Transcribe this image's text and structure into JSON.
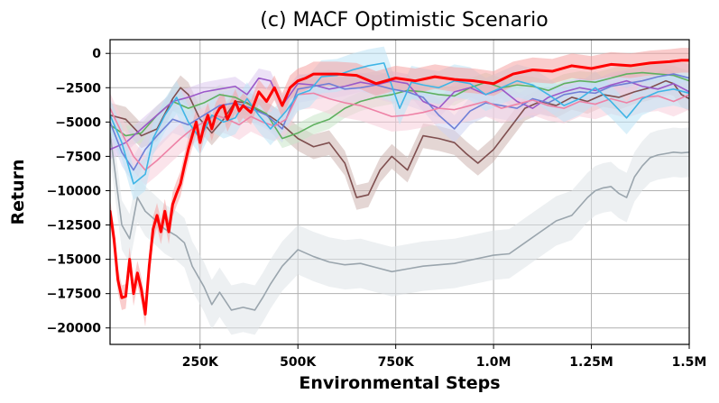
{
  "chart_data": {
    "type": "line",
    "title": "(c) MACF Optimistic Scenario",
    "xlabel": "Environmental Steps",
    "ylabel": "Return",
    "xlim": [
      20000,
      1500000
    ],
    "ylim": [
      -21200,
      1000
    ],
    "grid": true,
    "x_ticks": [
      250000,
      500000,
      750000,
      1000000,
      1250000,
      1500000
    ],
    "x_tick_labels": [
      "250K",
      "500K",
      "750K",
      "1.0M",
      "1.25M",
      "1.5M"
    ],
    "y_ticks": [
      0,
      -2500,
      -5000,
      -7500,
      -10000,
      -12500,
      -15000,
      -17500,
      -20000
    ],
    "y_tick_labels": [
      "0",
      "−2500",
      "−5000",
      "−7500",
      "−10000",
      "−12500",
      "−15000",
      "−17500",
      "−20000"
    ],
    "series": [
      {
        "name": "gray",
        "color": "#9aa5ad",
        "band_color": "#dfe4e8",
        "band_width": 1800,
        "width": 1.6,
        "x": [
          20000,
          50000,
          70000,
          90000,
          110000,
          130000,
          160000,
          190000,
          210000,
          230000,
          260000,
          280000,
          300000,
          330000,
          360000,
          390000,
          410000,
          430000,
          460000,
          500000,
          540000,
          580000,
          620000,
          660000,
          700000,
          740000,
          780000,
          820000,
          860000,
          900000,
          950000,
          1000000,
          1040000,
          1080000,
          1120000,
          1160000,
          1200000,
          1240000,
          1260000,
          1280000,
          1300000,
          1320000,
          1340000,
          1360000,
          1380000,
          1400000,
          1420000,
          1440000,
          1460000,
          1480000,
          1500000
        ],
        "y": [
          -5800,
          -12500,
          -13500,
          -10500,
          -11500,
          -12000,
          -12800,
          -13300,
          -13800,
          -15500,
          -17000,
          -18300,
          -17400,
          -18700,
          -18500,
          -18700,
          -17800,
          -16800,
          -15500,
          -14300,
          -14800,
          -15200,
          -15400,
          -15300,
          -15600,
          -15900,
          -15700,
          -15500,
          -15400,
          -15300,
          -15000,
          -14700,
          -14600,
          -13800,
          -13000,
          -12200,
          -11800,
          -10500,
          -10000,
          -9800,
          -9700,
          -10200,
          -10500,
          -9000,
          -8200,
          -7600,
          -7400,
          -7300,
          -7200,
          -7250,
          -7200
        ]
      },
      {
        "name": "brown",
        "color": "#7f4f4f",
        "band_color": "#cdb5b0",
        "band_width": 900,
        "width": 1.6,
        "x": [
          20000,
          60000,
          100000,
          140000,
          180000,
          200000,
          220000,
          250000,
          280000,
          310000,
          340000,
          370000,
          400000,
          430000,
          460000,
          500000,
          540000,
          580000,
          620000,
          650000,
          680000,
          710000,
          740000,
          780000,
          820000,
          860000,
          900000,
          930000,
          960000,
          1000000,
          1040000,
          1080000,
          1120000,
          1160000,
          1200000,
          1240000,
          1280000,
          1320000,
          1360000,
          1400000,
          1440000,
          1460000,
          1480000,
          1500000
        ],
        "y": [
          -4500,
          -4800,
          -6000,
          -5500,
          -3300,
          -2500,
          -3000,
          -4800,
          -5800,
          -4800,
          -3500,
          -3600,
          -4200,
          -4600,
          -5200,
          -6200,
          -6800,
          -6500,
          -8000,
          -10500,
          -10300,
          -8500,
          -7500,
          -8500,
          -6000,
          -6200,
          -6500,
          -7300,
          -8000,
          -7000,
          -5500,
          -4000,
          -3500,
          -3800,
          -3200,
          -3500,
          -3000,
          -3200,
          -2800,
          -2500,
          -2000,
          -2200,
          -3000,
          -3300
        ]
      },
      {
        "name": "green",
        "color": "#5fb05f",
        "band_color": "#c8e6c8",
        "band_width": 700,
        "width": 1.6,
        "x": [
          20000,
          60000,
          100000,
          140000,
          180000,
          220000,
          260000,
          300000,
          340000,
          380000,
          420000,
          460000,
          500000,
          540000,
          580000,
          620000,
          660000,
          700000,
          740000,
          780000,
          820000,
          860000,
          900000,
          940000,
          980000,
          1020000,
          1060000,
          1100000,
          1140000,
          1180000,
          1220000,
          1260000,
          1300000,
          1340000,
          1380000,
          1420000,
          1460000,
          1500000
        ],
        "y": [
          -5200,
          -6000,
          -5800,
          -4500,
          -3500,
          -4000,
          -3600,
          -3000,
          -3200,
          -3800,
          -4400,
          -6200,
          -5800,
          -5200,
          -4800,
          -4000,
          -3500,
          -3200,
          -3000,
          -2700,
          -2800,
          -3000,
          -3100,
          -2500,
          -2100,
          -2500,
          -2300,
          -2400,
          -2700,
          -2200,
          -2000,
          -2100,
          -1800,
          -1500,
          -1400,
          -1500,
          -1600,
          -2000
        ]
      },
      {
        "name": "purple",
        "color": "#9b59c9",
        "band_color": "#dcc8ee",
        "band_width": 700,
        "width": 1.6,
        "x": [
          20000,
          60000,
          100000,
          140000,
          180000,
          220000,
          260000,
          300000,
          340000,
          370000,
          400000,
          430000,
          460000,
          500000,
          540000,
          580000,
          620000,
          660000,
          700000,
          740000,
          780000,
          820000,
          860000,
          900000,
          940000,
          980000,
          1020000,
          1060000,
          1100000,
          1140000,
          1180000,
          1220000,
          1260000,
          1300000,
          1340000,
          1380000,
          1420000,
          1460000,
          1500000
        ],
        "y": [
          -7000,
          -6500,
          -5500,
          -4500,
          -3500,
          -3200,
          -2800,
          -2600,
          -2400,
          -3000,
          -1800,
          -2000,
          -3800,
          -2200,
          -2300,
          -2600,
          -2400,
          -2100,
          -2300,
          -2000,
          -2200,
          -3500,
          -4000,
          -2800,
          -2500,
          -3000,
          -2600,
          -3500,
          -4000,
          -3200,
          -2800,
          -2500,
          -2700,
          -2300,
          -2000,
          -2400,
          -2600,
          -2200,
          -2800
        ]
      },
      {
        "name": "blue",
        "color": "#6f7fd6",
        "band_color": "#cfd5f2",
        "band_width": 1000,
        "width": 1.6,
        "x": [
          20000,
          50000,
          80000,
          110000,
          140000,
          180000,
          220000,
          260000,
          300000,
          340000,
          380000,
          420000,
          460000,
          500000,
          540000,
          580000,
          620000,
          660000,
          700000,
          740000,
          780000,
          820000,
          860000,
          900000,
          940000,
          980000,
          1020000,
          1060000,
          1100000,
          1140000,
          1180000,
          1220000,
          1260000,
          1300000,
          1340000,
          1380000,
          1420000,
          1460000,
          1500000
        ],
        "y": [
          -5000,
          -7200,
          -8500,
          -7000,
          -6000,
          -4800,
          -5200,
          -4500,
          -3800,
          -3600,
          -4000,
          -4500,
          -5500,
          -2600,
          -2400,
          -2200,
          -2600,
          -2500,
          -2300,
          -2600,
          -2800,
          -3200,
          -4500,
          -5500,
          -4200,
          -3600,
          -3800,
          -4000,
          -3300,
          -3600,
          -3000,
          -2800,
          -2900,
          -2400,
          -2200,
          -2000,
          -1700,
          -1500,
          -1800
        ]
      },
      {
        "name": "pink",
        "color": "#ee82a6",
        "band_color": "#f7cedb",
        "band_width": 1100,
        "width": 1.6,
        "x": [
          20000,
          50000,
          80000,
          110000,
          140000,
          170000,
          200000,
          230000,
          260000,
          290000,
          320000,
          350000,
          380000,
          410000,
          440000,
          470000,
          500000,
          540000,
          580000,
          620000,
          660000,
          700000,
          740000,
          780000,
          820000,
          860000,
          900000,
          940000,
          980000,
          1020000,
          1060000,
          1100000,
          1140000,
          1180000,
          1220000,
          1260000,
          1300000,
          1340000,
          1380000,
          1420000,
          1460000,
          1500000
        ],
        "y": [
          -4000,
          -5800,
          -7500,
          -8500,
          -7800,
          -7000,
          -6200,
          -5500,
          -5000,
          -4500,
          -4800,
          -5200,
          -4600,
          -5000,
          -5300,
          -4800,
          -3000,
          -2900,
          -3300,
          -3600,
          -3800,
          -4200,
          -4600,
          -4500,
          -4300,
          -4000,
          -4100,
          -3800,
          -3500,
          -4000,
          -3700,
          -3400,
          -3800,
          -4000,
          -3500,
          -3700,
          -3300,
          -3600,
          -3200,
          -3100,
          -3500,
          -3000
        ]
      },
      {
        "name": "cyan",
        "color": "#3fb5e6",
        "band_color": "#bde4f5",
        "band_width": 1200,
        "width": 1.6,
        "x": [
          20000,
          50000,
          80000,
          110000,
          130000,
          160000,
          190000,
          220000,
          250000,
          280000,
          310000,
          340000,
          370000,
          400000,
          430000,
          470000,
          500000,
          530000,
          560000,
          600000,
          640000,
          680000,
          720000,
          760000,
          790000,
          820000,
          860000,
          900000,
          940000,
          980000,
          1020000,
          1060000,
          1100000,
          1140000,
          1180000,
          1220000,
          1260000,
          1300000,
          1340000,
          1380000,
          1420000,
          1460000,
          1500000
        ],
        "y": [
          -4500,
          -6500,
          -9500,
          -8800,
          -6200,
          -4500,
          -3200,
          -5000,
          -6200,
          -4500,
          -5000,
          -4700,
          -3300,
          -4500,
          -5500,
          -4200,
          -3000,
          -2700,
          -1700,
          -1600,
          -1200,
          -900,
          -700,
          -4000,
          -2100,
          -2300,
          -2500,
          -2000,
          -2200,
          -3000,
          -2500,
          -2000,
          -2300,
          -3000,
          -3800,
          -3300,
          -2500,
          -3500,
          -4700,
          -3300,
          -2800,
          -2600,
          -2900
        ]
      },
      {
        "name": "red",
        "color": "#ff0000",
        "band_color": "#f6a3a3",
        "band_width": 900,
        "width": 3.0,
        "x": [
          20000,
          30000,
          40000,
          50000,
          60000,
          70000,
          80000,
          90000,
          100000,
          110000,
          120000,
          130000,
          140000,
          150000,
          160000,
          170000,
          180000,
          190000,
          200000,
          210000,
          220000,
          230000,
          240000,
          250000,
          260000,
          270000,
          280000,
          290000,
          300000,
          310000,
          320000,
          330000,
          340000,
          350000,
          360000,
          380000,
          400000,
          420000,
          440000,
          460000,
          480000,
          500000,
          520000,
          540000,
          560000,
          600000,
          650000,
          700000,
          750000,
          800000,
          850000,
          900000,
          950000,
          1000000,
          1050000,
          1100000,
          1150000,
          1200000,
          1250000,
          1300000,
          1350000,
          1400000,
          1450000,
          1480000,
          1500000
        ],
        "y": [
          -11500,
          -13500,
          -16500,
          -17800,
          -17700,
          -15000,
          -17500,
          -16000,
          -17200,
          -19000,
          -15500,
          -12800,
          -11800,
          -13000,
          -11500,
          -13000,
          -11000,
          -10200,
          -9500,
          -8200,
          -7000,
          -6000,
          -5000,
          -6500,
          -5300,
          -4500,
          -5500,
          -4500,
          -4000,
          -3800,
          -4800,
          -4200,
          -3500,
          -4200,
          -3800,
          -4300,
          -2800,
          -3500,
          -2500,
          -3800,
          -2500,
          -2000,
          -1800,
          -1500,
          -1500,
          -1500,
          -1600,
          -2200,
          -1800,
          -2000,
          -1700,
          -1900,
          -2000,
          -2200,
          -1500,
          -1200,
          -1300,
          -900,
          -1100,
          -800,
          -900,
          -700,
          -600,
          -500,
          -500
        ]
      }
    ]
  }
}
